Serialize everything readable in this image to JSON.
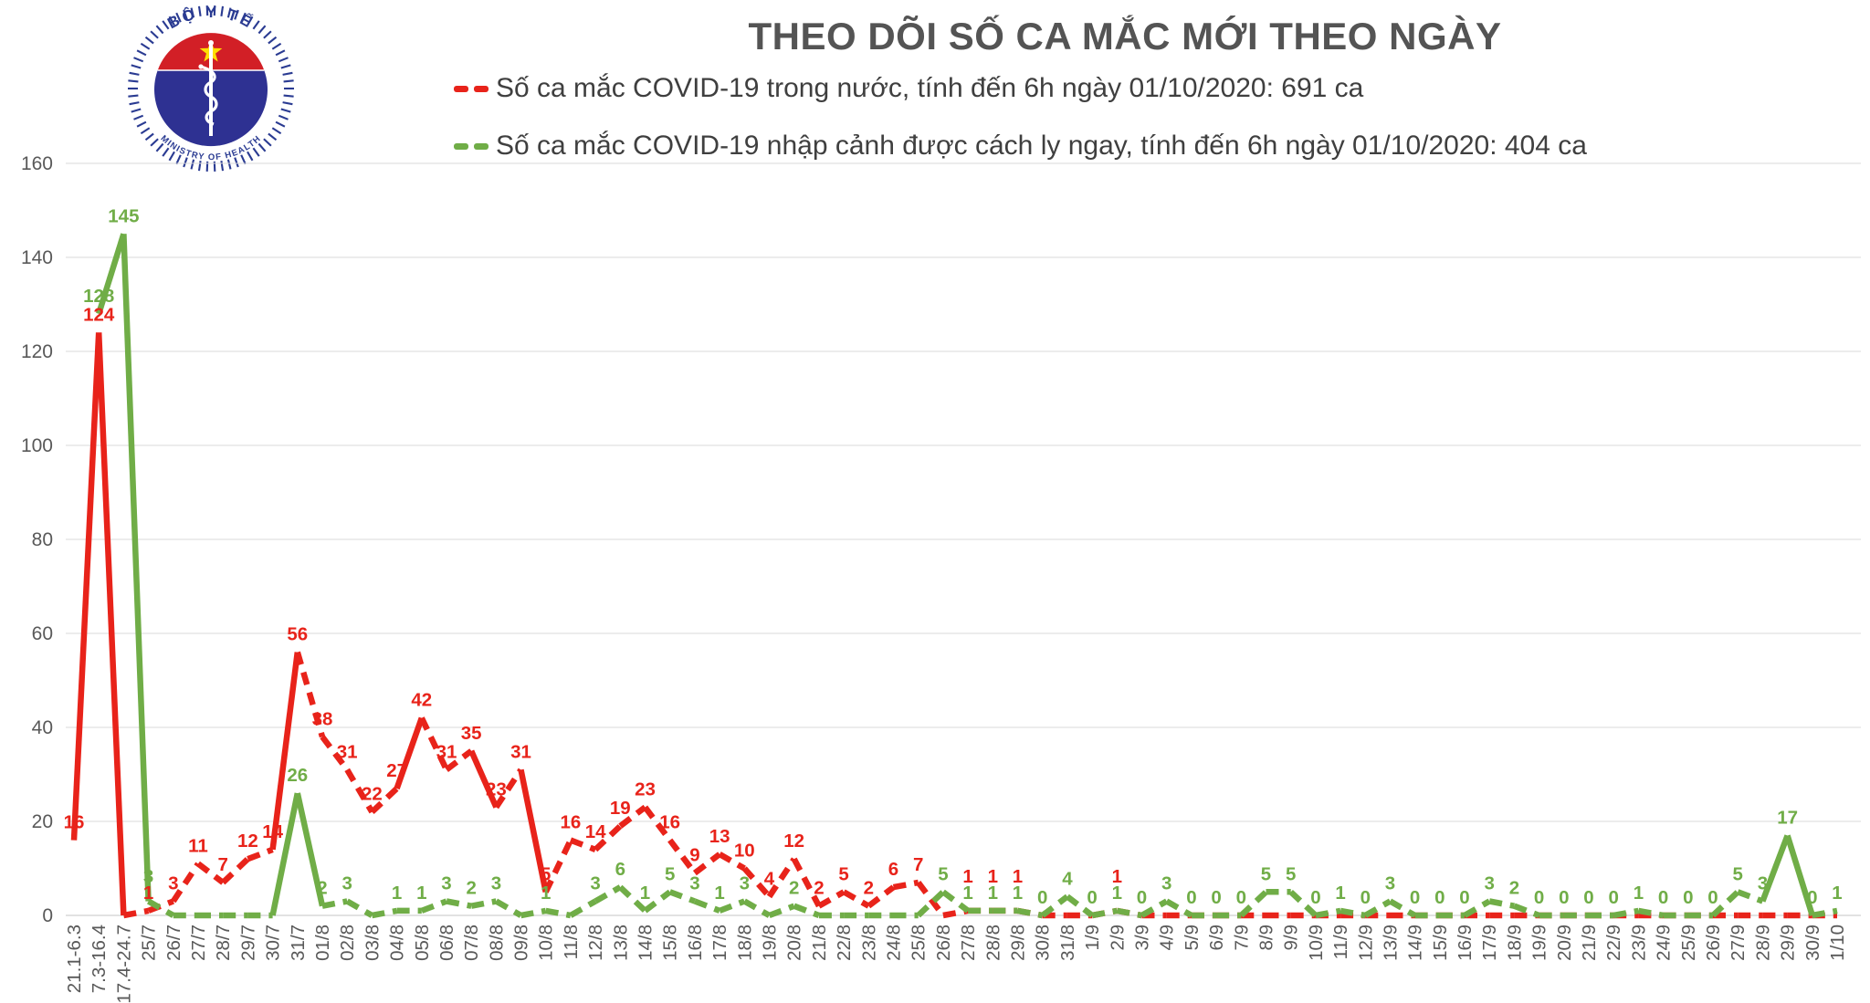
{
  "header": {
    "title": "THEO DÕI SỐ CA MẮC MỚI THEO NGÀY"
  },
  "logo": {
    "top_text": "BỘ Y TẾ",
    "bottom_text": "MINISTRY OF HEALTH"
  },
  "colors": {
    "red": "#E8231A",
    "green": "#70AD47",
    "grid": "#D9D9D9",
    "axis_text": "#595959",
    "title_text": "#545454",
    "legend_text": "#3F3F3F",
    "logo_navy": "#2A3B92",
    "logo_red": "#D21F26",
    "logo_blue": "#2E3192",
    "logo_star_yellow": "#FFDE00"
  },
  "chart_data": {
    "type": "line",
    "title": "THEO DÕI SỐ CA MẮC MỚI THEO NGÀY",
    "xlabel": "",
    "ylabel": "",
    "ylim": [
      0,
      160
    ],
    "y_ticks": [
      0,
      20,
      40,
      60,
      80,
      100,
      120,
      140,
      160
    ],
    "grid": "horizontal",
    "legend_position": "top",
    "categories": [
      "21.1-6.3",
      "7.3-16.4",
      "17.4-24.7",
      "25/7",
      "26/7",
      "27/7",
      "28/7",
      "29/7",
      "30/7",
      "31/7",
      "01/8",
      "02/8",
      "03/8",
      "04/8",
      "05/8",
      "06/8",
      "07/8",
      "08/8",
      "09/8",
      "10/8",
      "11/8",
      "12/8",
      "13/8",
      "14/8",
      "15/8",
      "16/8",
      "17/8",
      "18/8",
      "19/8",
      "20/8",
      "21/8",
      "22/8",
      "23/8",
      "24/8",
      "25/8",
      "26/8",
      "27/8",
      "28/8",
      "29/8",
      "30/8",
      "31/8",
      "1/9",
      "2/9",
      "3/9",
      "4/9",
      "5/9",
      "6/9",
      "7/9",
      "8/9",
      "9/9",
      "10/9",
      "11/9",
      "12/9",
      "13/9",
      "14/9",
      "15/9",
      "16/9",
      "17/9",
      "18/9",
      "19/9",
      "20/9",
      "21/9",
      "22/9",
      "23/9",
      "24/9",
      "25/9",
      "26/9",
      "27/9",
      "28/9",
      "29/9",
      "30/9",
      "1/10"
    ],
    "series": [
      {
        "id": "domestic",
        "legend_label": "Số ca mắc COVID-19 trong nước, tính đến 6h ngày 01/10/2020: 691 ca",
        "color": "#E8231A",
        "total": 691,
        "values": [
          16,
          124,
          0,
          1,
          3,
          11,
          7,
          12,
          14,
          56,
          38,
          31,
          22,
          27,
          42,
          31,
          35,
          23,
          31,
          5,
          16,
          14,
          19,
          23,
          16,
          9,
          13,
          10,
          4,
          12,
          2,
          5,
          2,
          6,
          7,
          0,
          1,
          1,
          1,
          0,
          0,
          0,
          1,
          0,
          0,
          0,
          0,
          0,
          0,
          0,
          0,
          0,
          0,
          0,
          0,
          0,
          0,
          0,
          0,
          0,
          0,
          0,
          0,
          0,
          0,
          0,
          0,
          0,
          0,
          0,
          0,
          0
        ],
        "labels": [
          "16",
          "124",
          "",
          "1",
          "3",
          "11",
          "7",
          "12",
          "14",
          "56",
          "38",
          "31",
          "22",
          "27",
          "42",
          "31",
          "35",
          "23",
          "31",
          "5",
          "16",
          "14",
          "19",
          "23",
          "16",
          "9",
          "13",
          "10",
          "4",
          "12",
          "2",
          "5",
          "2",
          "6",
          "7",
          "",
          "1",
          "1",
          "1",
          "",
          "",
          "",
          "1",
          "",
          "",
          "",
          "",
          "",
          "",
          "",
          "",
          "",
          "",
          "",
          "",
          "",
          "",
          "",
          "",
          "",
          "",
          "",
          "",
          "",
          "",
          "",
          "",
          "",
          "",
          "",
          "",
          ""
        ]
      },
      {
        "id": "imported",
        "legend_label": "Số ca mắc COVID-19 nhập cảnh được cách ly ngay, tính đến 6h ngày 01/10/2020: 404 ca",
        "color": "#70AD47",
        "total": 404,
        "values": [
          null,
          128,
          145,
          3,
          0,
          0,
          0,
          0,
          0,
          26,
          2,
          3,
          0,
          1,
          1,
          3,
          2,
          3,
          0,
          1,
          0,
          3,
          6,
          1,
          5,
          3,
          1,
          3,
          0,
          2,
          0,
          0,
          0,
          0,
          0,
          5,
          1,
          1,
          1,
          0,
          4,
          0,
          1,
          0,
          3,
          0,
          0,
          0,
          5,
          5,
          0,
          1,
          0,
          3,
          0,
          0,
          0,
          3,
          2,
          0,
          0,
          0,
          0,
          1,
          0,
          0,
          0,
          5,
          3,
          17,
          0,
          1
        ],
        "labels": [
          "",
          "128",
          "145",
          "3",
          "",
          "",
          "",
          "",
          "",
          "26",
          "2",
          "3",
          "",
          "1",
          "1",
          "3",
          "2",
          "3",
          "",
          "1",
          "",
          "3",
          "6",
          "1",
          "5",
          "3",
          "1",
          "3",
          "",
          "2",
          "",
          "",
          "",
          "",
          "",
          "5",
          "1",
          "1",
          "1",
          "0",
          "4",
          "0",
          "1",
          "0",
          "3",
          "0",
          "0",
          "0",
          "5",
          "5",
          "0",
          "1",
          "0",
          "3",
          "0",
          "0",
          "0",
          "3",
          "2",
          "0",
          "0",
          "0",
          "0",
          "1",
          "0",
          "0",
          "0",
          "5",
          "3",
          "17",
          "0",
          "1"
        ]
      }
    ]
  }
}
